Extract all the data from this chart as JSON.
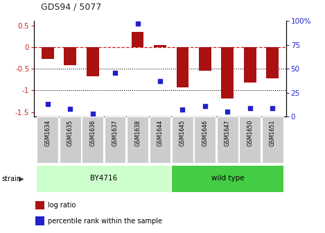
{
  "title": "GDS94 / 5077",
  "samples": [
    "GSM1634",
    "GSM1635",
    "GSM1636",
    "GSM1637",
    "GSM1638",
    "GSM1644",
    "GSM1645",
    "GSM1646",
    "GSM1647",
    "GSM1650",
    "GSM1651"
  ],
  "log_ratios": [
    -0.28,
    -0.42,
    -0.68,
    -0.01,
    0.35,
    0.05,
    -0.93,
    -0.55,
    -1.18,
    -0.82,
    -0.72
  ],
  "percentile_ranks": [
    13,
    8,
    3,
    46,
    97,
    37,
    7,
    11,
    5,
    9,
    9
  ],
  "ylim_left": [
    -1.6,
    0.6
  ],
  "ylim_right": [
    0,
    100
  ],
  "bar_color": "#aa1111",
  "dot_color": "#2222cc",
  "hline_color": "#cc2222",
  "dotted_line_color": "#111111",
  "bg_color": "#ffffff",
  "left_tick_labels": [
    "0.5",
    "0",
    "-0.5",
    "-1",
    "-1.5"
  ],
  "left_tick_values": [
    0.5,
    0.0,
    -0.5,
    -1.0,
    -1.5
  ],
  "right_tick_labels": [
    "100%",
    "75",
    "50",
    "25",
    "0"
  ],
  "right_tick_values": [
    100,
    75,
    50,
    25,
    0
  ],
  "by4716_color": "#ccffcc",
  "wildtype_color": "#44cc44",
  "by4716_label": "BY4716",
  "wildtype_label": "wild type",
  "strain_label": "strain",
  "legend_log": "log ratio",
  "legend_pct": "percentile rank within the sample",
  "sample_box_color": "#cccccc",
  "sample_text_color": "#000000"
}
